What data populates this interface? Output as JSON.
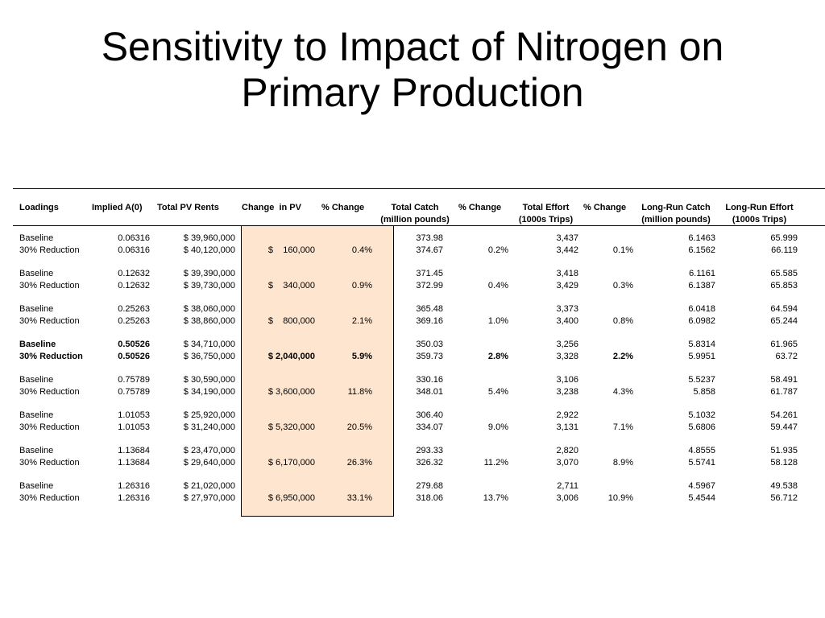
{
  "title": [
    "Sensitivity to Impact of Nitrogen on",
    "Primary Production"
  ],
  "highlight_color": "#fde5d0",
  "headers": {
    "loadings": "Loadings",
    "implied": "Implied A(0)",
    "total_pv_rents": "Total PV Rents",
    "change_in_pv": "Change  in PV",
    "pct_change_pv": "% Change",
    "total_catch": [
      "Total Catch",
      "(million pounds)"
    ],
    "pct_change_catch": "% Change",
    "total_effort": [
      "Total Effort",
      "(1000s Trips)"
    ],
    "pct_change_effort": "% Change",
    "long_run_catch": [
      "Long-Run Catch",
      "(million pounds)"
    ],
    "long_run_effort": [
      "Long-Run Effort",
      "(1000s Trips)"
    ]
  },
  "groups": [
    {
      "bold": false,
      "rows": [
        {
          "label": "Baseline",
          "implied": "0.06316",
          "rents": "$ 39,960,000",
          "dpv": "",
          "pctpv": "",
          "catch": "373.98",
          "pctcatch": "",
          "effort": "3,437",
          "pcteffort": "",
          "lrcatch": "6.1463",
          "lreffort": "65.999"
        },
        {
          "label": "30% Reduction",
          "implied": "0.06316",
          "rents": "$ 40,120,000",
          "dpv": "$    160,000",
          "pctpv": "0.4%",
          "catch": "374.67",
          "pctcatch": "0.2%",
          "effort": "3,442",
          "pcteffort": "0.1%",
          "lrcatch": "6.1562",
          "lreffort": "66.119"
        }
      ]
    },
    {
      "bold": false,
      "rows": [
        {
          "label": "Baseline",
          "implied": "0.12632",
          "rents": "$ 39,390,000",
          "dpv": "",
          "pctpv": "",
          "catch": "371.45",
          "pctcatch": "",
          "effort": "3,418",
          "pcteffort": "",
          "lrcatch": "6.1161",
          "lreffort": "65.585"
        },
        {
          "label": "30% Reduction",
          "implied": "0.12632",
          "rents": "$ 39,730,000",
          "dpv": "$    340,000",
          "pctpv": "0.9%",
          "catch": "372.99",
          "pctcatch": "0.4%",
          "effort": "3,429",
          "pcteffort": "0.3%",
          "lrcatch": "6.1387",
          "lreffort": "65.853"
        }
      ]
    },
    {
      "bold": false,
      "rows": [
        {
          "label": "Baseline",
          "implied": "0.25263",
          "rents": "$ 38,060,000",
          "dpv": "",
          "pctpv": "",
          "catch": "365.48",
          "pctcatch": "",
          "effort": "3,373",
          "pcteffort": "",
          "lrcatch": "6.0418",
          "lreffort": "64.594"
        },
        {
          "label": "30% Reduction",
          "implied": "0.25263",
          "rents": "$ 38,860,000",
          "dpv": "$    800,000",
          "pctpv": "2.1%",
          "catch": "369.16",
          "pctcatch": "1.0%",
          "effort": "3,400",
          "pcteffort": "0.8%",
          "lrcatch": "6.0982",
          "lreffort": "65.244"
        }
      ]
    },
    {
      "bold": true,
      "rows": [
        {
          "label": "Baseline",
          "implied": "0.50526",
          "rents": "$ 34,710,000",
          "dpv": "",
          "pctpv": "",
          "catch": "350.03",
          "pctcatch": "",
          "effort": "3,256",
          "pcteffort": "",
          "lrcatch": "5.8314",
          "lreffort": "61.965"
        },
        {
          "label": "30% Reduction",
          "implied": "0.50526",
          "rents": "$ 36,750,000",
          "dpv": "$ 2,040,000",
          "pctpv": "5.9%",
          "catch": "359.73",
          "pctcatch": "2.8%",
          "effort": "3,328",
          "pcteffort": "2.2%",
          "lrcatch": "5.9951",
          "lreffort": "63.72"
        }
      ]
    },
    {
      "bold": false,
      "rows": [
        {
          "label": "Baseline",
          "implied": "0.75789",
          "rents": "$ 30,590,000",
          "dpv": "",
          "pctpv": "",
          "catch": "330.16",
          "pctcatch": "",
          "effort": "3,106",
          "pcteffort": "",
          "lrcatch": "5.5237",
          "lreffort": "58.491"
        },
        {
          "label": "30% Reduction",
          "implied": "0.75789",
          "rents": "$ 34,190,000",
          "dpv": "$ 3,600,000",
          "pctpv": "11.8%",
          "catch": "348.01",
          "pctcatch": "5.4%",
          "effort": "3,238",
          "pcteffort": "4.3%",
          "lrcatch": "5.858",
          "lreffort": "61.787"
        }
      ]
    },
    {
      "bold": false,
      "rows": [
        {
          "label": "Baseline",
          "implied": "1.01053",
          "rents": "$ 25,920,000",
          "dpv": "",
          "pctpv": "",
          "catch": "306.40",
          "pctcatch": "",
          "effort": "2,922",
          "pcteffort": "",
          "lrcatch": "5.1032",
          "lreffort": "54.261"
        },
        {
          "label": "30% Reduction",
          "implied": "1.01053",
          "rents": "$ 31,240,000",
          "dpv": "$ 5,320,000",
          "pctpv": "20.5%",
          "catch": "334.07",
          "pctcatch": "9.0%",
          "effort": "3,131",
          "pcteffort": "7.1%",
          "lrcatch": "5.6806",
          "lreffort": "59.447"
        }
      ]
    },
    {
      "bold": false,
      "rows": [
        {
          "label": "Baseline",
          "implied": "1.13684",
          "rents": "$ 23,470,000",
          "dpv": "",
          "pctpv": "",
          "catch": "293.33",
          "pctcatch": "",
          "effort": "2,820",
          "pcteffort": "",
          "lrcatch": "4.8555",
          "lreffort": "51.935"
        },
        {
          "label": "30% Reduction",
          "implied": "1.13684",
          "rents": "$ 29,640,000",
          "dpv": "$ 6,170,000",
          "pctpv": "26.3%",
          "catch": "326.32",
          "pctcatch": "11.2%",
          "effort": "3,070",
          "pcteffort": "8.9%",
          "lrcatch": "5.5741",
          "lreffort": "58.128"
        }
      ]
    },
    {
      "bold": false,
      "rows": [
        {
          "label": "Baseline",
          "implied": "1.26316",
          "rents": "$ 21,020,000",
          "dpv": "",
          "pctpv": "",
          "catch": "279.68",
          "pctcatch": "",
          "effort": "2,711",
          "pcteffort": "",
          "lrcatch": "4.5967",
          "lreffort": "49.538"
        },
        {
          "label": "30% Reduction",
          "implied": "1.26316",
          "rents": "$ 27,970,000",
          "dpv": "$ 6,950,000",
          "pctpv": "33.1%",
          "catch": "318.06",
          "pctcatch": "13.7%",
          "effort": "3,006",
          "pcteffort": "10.9%",
          "lrcatch": "5.4544",
          "lreffort": "56.712"
        }
      ]
    }
  ]
}
